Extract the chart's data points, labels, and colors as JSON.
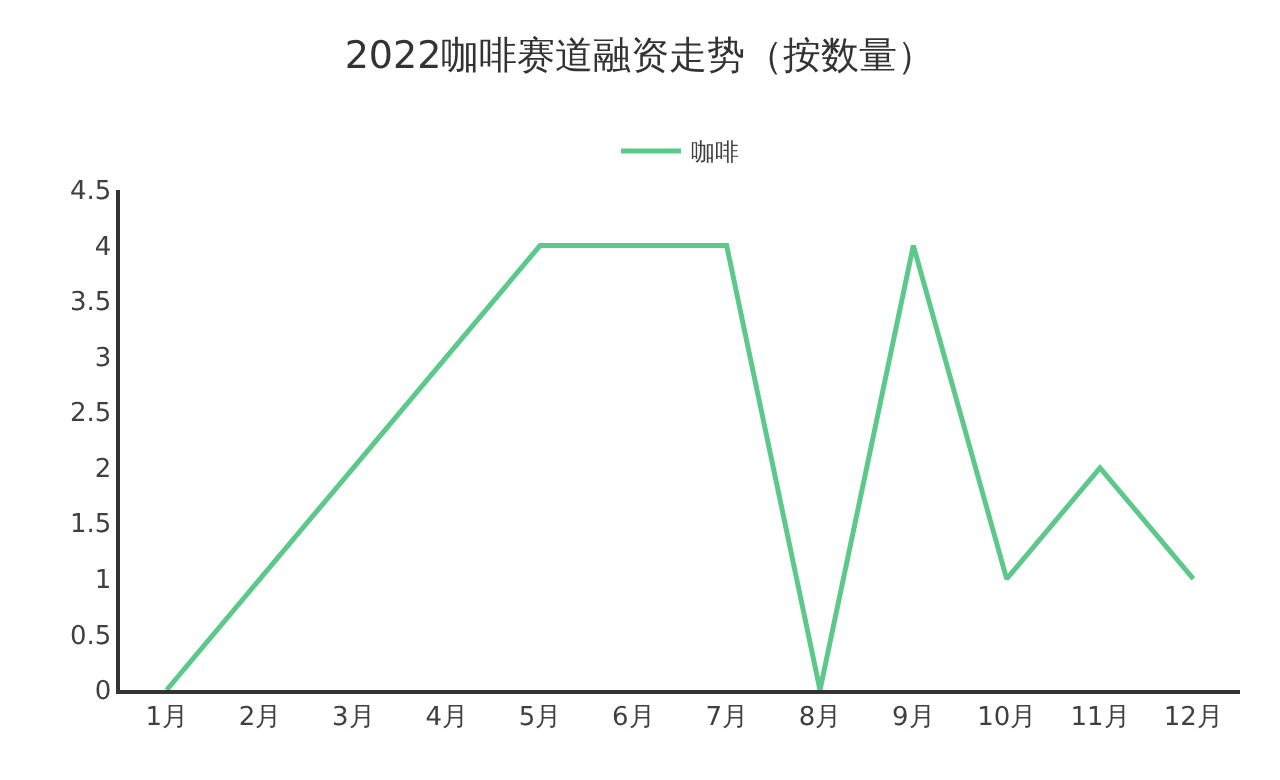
{
  "chart_data": {
    "type": "line",
    "title": "2022咖啡赛道融资走势（按数量）",
    "categories": [
      "1月",
      "2月",
      "3月",
      "4月",
      "5月",
      "6月",
      "7月",
      "8月",
      "9月",
      "10月",
      "11月",
      "12月"
    ],
    "series": [
      {
        "name": "咖啡",
        "color": "#5cc98a",
        "values": [
          0,
          1,
          2,
          3,
          4,
          4,
          4,
          0,
          4,
          1,
          2,
          1
        ]
      }
    ],
    "ylim": [
      0,
      4.5
    ],
    "yticks": [
      0,
      0.5,
      1,
      1.5,
      2,
      2.5,
      3,
      3.5,
      4,
      4.5
    ],
    "grid": false,
    "legend": "top",
    "marker": "none",
    "line_style": "solid"
  }
}
